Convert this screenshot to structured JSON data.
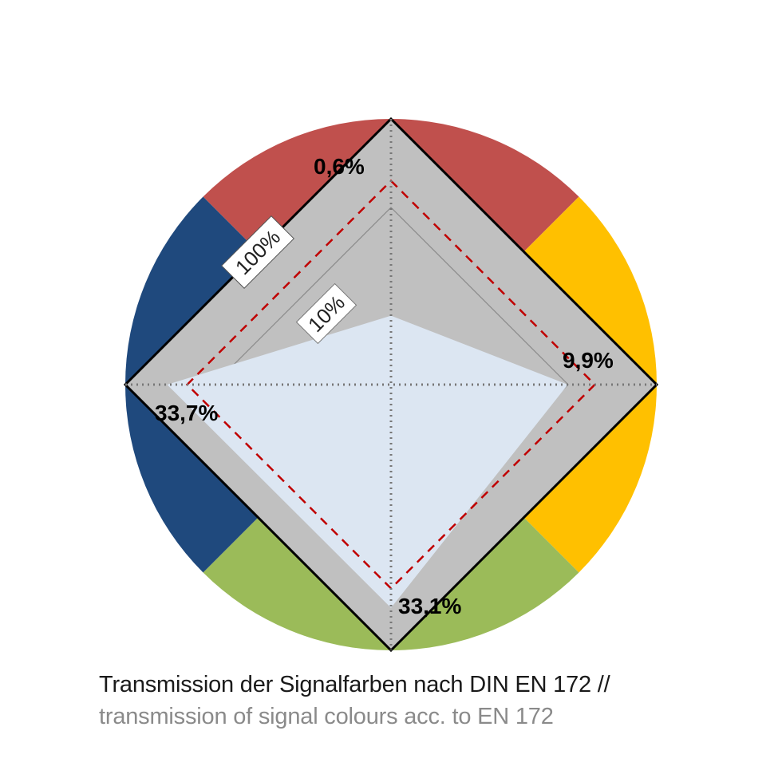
{
  "chart_data": {
    "type": "radar",
    "scale": "log",
    "rings": [
      {
        "value": 100,
        "label": "100%"
      },
      {
        "value": 10,
        "label": "10%"
      }
    ],
    "reference_ring_value": 20,
    "axes": [
      {
        "key": "red",
        "color": "#C0504D",
        "value": 0.6,
        "label": "0,6%"
      },
      {
        "key": "yellow",
        "color": "#FFC000",
        "value": 9.9,
        "label": "9,9%"
      },
      {
        "key": "green",
        "color": "#9BBB59",
        "value": 33.1,
        "label": "33,1%"
      },
      {
        "key": "blue",
        "color": "#1F497D",
        "value": 33.7,
        "label": "33,7%"
      }
    ]
  },
  "caption": {
    "de": "Transmission der Signalfarben nach DIN EN 172 //",
    "en": "transmission of signal colours acc. to EN 172"
  }
}
